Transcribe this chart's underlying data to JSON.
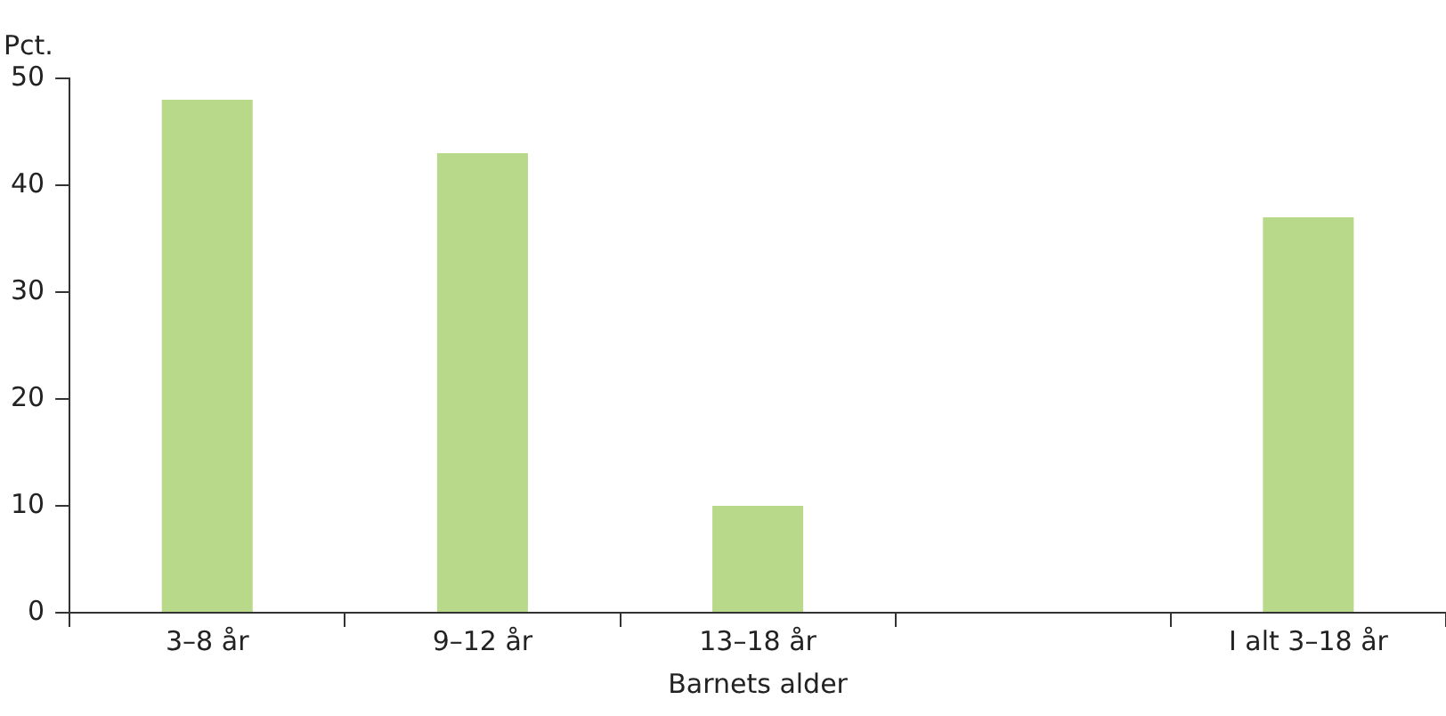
{
  "chart_data": {
    "type": "bar",
    "ylabel": "Pct.",
    "xlabel": "Barnets alder",
    "categories": [
      "3–8 år",
      "9–12 år",
      "13–18 år",
      null,
      "I alt 3–18 år"
    ],
    "values": [
      48,
      43,
      10,
      null,
      37
    ],
    "color": "#b8d98a",
    "ylim": [
      0,
      50
    ],
    "yticks": [
      0,
      10,
      20,
      30,
      40,
      50
    ],
    "grid": false,
    "legend": false
  }
}
